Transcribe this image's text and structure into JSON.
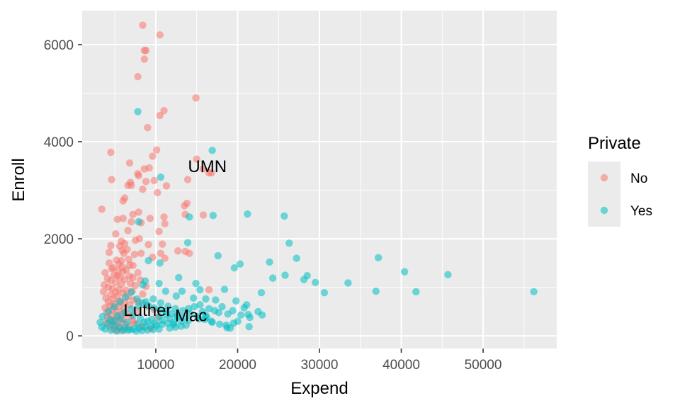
{
  "chart_data": {
    "type": "scatter",
    "xlabel": "Expend",
    "ylabel": "Enroll",
    "xlim": [
      1000,
      59000
    ],
    "ylim": [
      -260,
      6700
    ],
    "x_ticks": [
      10000,
      20000,
      30000,
      40000,
      50000
    ],
    "y_ticks": [
      0,
      2000,
      4000,
      6000
    ],
    "x_tick_labels": [
      "10000",
      "20000",
      "30000",
      "40000",
      "50000"
    ],
    "y_tick_labels": [
      "0",
      "2000",
      "4000",
      "6000"
    ],
    "grid": true,
    "legend": {
      "title": "Private",
      "placement": "right",
      "entries": [
        "No",
        "Yes"
      ]
    },
    "series": [
      {
        "name": "No",
        "color": "#F8766D",
        "points": [
          [
            8400,
            6400
          ],
          [
            10500,
            6200
          ],
          [
            8600,
            5880
          ],
          [
            8800,
            5880
          ],
          [
            8600,
            5700
          ],
          [
            7800,
            5340
          ],
          [
            14900,
            4900
          ],
          [
            11000,
            4640
          ],
          [
            10500,
            4540
          ],
          [
            9000,
            4290
          ],
          [
            4500,
            3780
          ],
          [
            10100,
            3830
          ],
          [
            15000,
            3640
          ],
          [
            9600,
            3700
          ],
          [
            6800,
            3560
          ],
          [
            8600,
            3440
          ],
          [
            9200,
            3460
          ],
          [
            16500,
            3360
          ],
          [
            15800,
            3440
          ],
          [
            16800,
            3360
          ],
          [
            7800,
            3340
          ],
          [
            7900,
            3300
          ],
          [
            4600,
            3220
          ],
          [
            6900,
            3160
          ],
          [
            13900,
            3220
          ],
          [
            9800,
            3200
          ],
          [
            8800,
            3180
          ],
          [
            6600,
            3100
          ],
          [
            7000,
            3100
          ],
          [
            11300,
            3090
          ],
          [
            8400,
            3020
          ],
          [
            10200,
            2950
          ],
          [
            6200,
            2840
          ],
          [
            6000,
            2780
          ],
          [
            13800,
            2730
          ],
          [
            13500,
            2680
          ],
          [
            3400,
            2610
          ],
          [
            7900,
            2550
          ],
          [
            13600,
            2500
          ],
          [
            15800,
            2490
          ],
          [
            7200,
            2500
          ],
          [
            11000,
            2450
          ],
          [
            9300,
            2420
          ],
          [
            5300,
            2400
          ],
          [
            6000,
            2420
          ],
          [
            7000,
            2350
          ],
          [
            8200,
            2330
          ],
          [
            11100,
            2310
          ],
          [
            6600,
            2170
          ],
          [
            10400,
            2150
          ],
          [
            5100,
            2100
          ],
          [
            8000,
            2000
          ],
          [
            7500,
            1970
          ],
          [
            10800,
            1890
          ],
          [
            5800,
            1950
          ],
          [
            6200,
            1900
          ],
          [
            5600,
            1850
          ],
          [
            9100,
            1880
          ],
          [
            4500,
            1860
          ],
          [
            5900,
            1760
          ],
          [
            6500,
            1780
          ],
          [
            4300,
            1720
          ],
          [
            12700,
            1750
          ],
          [
            13600,
            1740
          ],
          [
            14100,
            1700
          ],
          [
            6100,
            1700
          ],
          [
            7400,
            1680
          ],
          [
            8200,
            1700
          ],
          [
            10600,
            1700
          ],
          [
            9600,
            1620
          ],
          [
            11100,
            1600
          ],
          [
            6700,
            1580
          ],
          [
            5200,
            1560
          ],
          [
            5800,
            1550
          ],
          [
            4300,
            1500
          ],
          [
            5500,
            1480
          ],
          [
            6800,
            1460
          ],
          [
            7200,
            1450
          ],
          [
            5900,
            1420
          ],
          [
            4800,
            1400
          ],
          [
            4600,
            1380
          ],
          [
            6400,
            1360
          ],
          [
            5400,
            1340
          ],
          [
            3800,
            1300
          ],
          [
            6000,
            1320
          ],
          [
            7800,
            1300
          ],
          [
            4900,
            1250
          ],
          [
            5300,
            1240
          ],
          [
            6800,
            1230
          ],
          [
            7200,
            1200
          ],
          [
            4100,
            1180
          ],
          [
            5600,
            1200
          ],
          [
            6200,
            1160
          ],
          [
            8100,
            1150
          ],
          [
            4500,
            1140
          ],
          [
            5100,
            1100
          ],
          [
            3700,
            1050
          ],
          [
            6900,
            1080
          ],
          [
            5800,
            1060
          ],
          [
            7500,
            1040
          ],
          [
            8800,
            1020
          ],
          [
            16500,
            950
          ],
          [
            4200,
            1000
          ],
          [
            4700,
            980
          ],
          [
            5500,
            960
          ],
          [
            6400,
            940
          ],
          [
            3600,
            910
          ],
          [
            7100,
            920
          ],
          [
            5100,
            900
          ],
          [
            6000,
            880
          ],
          [
            8400,
            860
          ],
          [
            4500,
            850
          ],
          [
            5300,
            820
          ],
          [
            6600,
            800
          ],
          [
            3900,
            780
          ],
          [
            4800,
            760
          ],
          [
            7300,
            740
          ],
          [
            5700,
            720
          ],
          [
            4200,
            700
          ],
          [
            6200,
            690
          ],
          [
            5000,
            660
          ],
          [
            6800,
            640
          ],
          [
            4400,
            620
          ],
          [
            5500,
            600
          ],
          [
            3800,
            580
          ],
          [
            6100,
            560
          ],
          [
            4700,
            540
          ],
          [
            7600,
            520
          ],
          [
            5200,
            500
          ],
          [
            4000,
            480
          ],
          [
            6400,
            460
          ],
          [
            5800,
            440
          ],
          [
            4500,
            420
          ],
          [
            6900,
            400
          ],
          [
            5300,
            390
          ],
          [
            4100,
            370
          ],
          [
            6000,
            350
          ],
          [
            5000,
            330
          ],
          [
            7200,
            310
          ],
          [
            4600,
            300
          ],
          [
            5700,
            280
          ],
          [
            3900,
            260
          ],
          [
            6300,
            240
          ],
          [
            5100,
            220
          ],
          [
            4400,
            200
          ],
          [
            6700,
            180
          ],
          [
            5500,
            160
          ],
          [
            4800,
            140
          ],
          [
            6100,
            120
          ],
          [
            5300,
            110
          ],
          [
            7400,
            260
          ],
          [
            8900,
            620
          ],
          [
            9800,
            540
          ],
          [
            10200,
            380
          ],
          [
            8300,
            200
          ],
          [
            9400,
            150
          ],
          [
            7900,
            700
          ]
        ]
      },
      {
        "name": "Yes",
        "color": "#00BFC4",
        "points": [
          [
            7800,
            4620
          ],
          [
            16900,
            3820
          ],
          [
            10600,
            3270
          ],
          [
            21200,
            2510
          ],
          [
            25700,
            2470
          ],
          [
            17000,
            2480
          ],
          [
            14100,
            2450
          ],
          [
            7900,
            2350
          ],
          [
            26300,
            1910
          ],
          [
            13900,
            1920
          ],
          [
            27200,
            1600
          ],
          [
            37200,
            1610
          ],
          [
            17600,
            1650
          ],
          [
            20300,
            1480
          ],
          [
            19600,
            1400
          ],
          [
            23900,
            1520
          ],
          [
            40400,
            1320
          ],
          [
            45700,
            1260
          ],
          [
            25800,
            1250
          ],
          [
            28500,
            1240
          ],
          [
            24300,
            1190
          ],
          [
            28100,
            1160
          ],
          [
            29500,
            1100
          ],
          [
            33500,
            1090
          ],
          [
            18400,
            960
          ],
          [
            22900,
            890
          ],
          [
            30600,
            890
          ],
          [
            36900,
            920
          ],
          [
            41800,
            910
          ],
          [
            56200,
            910
          ],
          [
            12800,
            1200
          ],
          [
            14900,
            1080
          ],
          [
            13200,
            920
          ],
          [
            15400,
            950
          ],
          [
            10400,
            1080
          ],
          [
            8700,
            1130
          ],
          [
            9100,
            1550
          ],
          [
            10500,
            1500
          ],
          [
            8400,
            1050
          ],
          [
            11200,
            920
          ],
          [
            12500,
            820
          ],
          [
            14600,
            780
          ],
          [
            16100,
            760
          ],
          [
            17300,
            740
          ],
          [
            19800,
            720
          ],
          [
            21100,
            640
          ],
          [
            22500,
            500
          ],
          [
            21300,
            440
          ],
          [
            23000,
            430
          ],
          [
            20400,
            430
          ],
          [
            18800,
            450
          ],
          [
            17700,
            480
          ],
          [
            16500,
            560
          ],
          [
            18100,
            600
          ],
          [
            19400,
            520
          ],
          [
            20800,
            580
          ],
          [
            17200,
            520
          ],
          [
            15700,
            500
          ],
          [
            21500,
            380
          ],
          [
            20000,
            300
          ],
          [
            18700,
            170
          ],
          [
            19100,
            160
          ],
          [
            21400,
            190
          ],
          [
            16200,
            380
          ],
          [
            15300,
            350
          ],
          [
            14000,
            320
          ],
          [
            13100,
            300
          ],
          [
            12200,
            280
          ],
          [
            11500,
            260
          ],
          [
            10800,
            240
          ],
          [
            10100,
            220
          ],
          [
            9400,
            200
          ],
          [
            8700,
            180
          ],
          [
            8000,
            160
          ],
          [
            7300,
            140
          ],
          [
            6600,
            120
          ],
          [
            5900,
            110
          ],
          [
            5200,
            100
          ],
          [
            4500,
            120
          ],
          [
            3800,
            140
          ],
          [
            3200,
            280
          ],
          [
            3500,
            400
          ],
          [
            4200,
            500
          ],
          [
            4900,
            600
          ],
          [
            5600,
            700
          ],
          [
            6300,
            800
          ],
          [
            7000,
            900
          ],
          [
            7700,
            760
          ],
          [
            8400,
            680
          ],
          [
            9100,
            620
          ],
          [
            9800,
            580
          ],
          [
            10500,
            540
          ],
          [
            11200,
            500
          ],
          [
            11900,
            460
          ],
          [
            12600,
            420
          ],
          [
            13300,
            380
          ],
          [
            14000,
            560
          ],
          [
            14700,
            600
          ],
          [
            15400,
            640
          ],
          [
            16100,
            420
          ],
          [
            16800,
            300
          ],
          [
            13700,
            220
          ],
          [
            12400,
            180
          ],
          [
            11700,
            160
          ],
          [
            10400,
            140
          ],
          [
            9700,
            130
          ],
          [
            9000,
            120
          ],
          [
            8300,
            110
          ],
          [
            7600,
            100
          ],
          [
            6900,
            130
          ],
          [
            6200,
            160
          ],
          [
            5500,
            190
          ],
          [
            4800,
            220
          ],
          [
            4100,
            250
          ],
          [
            3400,
            180
          ],
          [
            4400,
            340
          ],
          [
            5300,
            420
          ],
          [
            6100,
            480
          ],
          [
            7000,
            550
          ],
          [
            7900,
            620
          ],
          [
            8800,
            700
          ],
          [
            9700,
            760
          ],
          [
            10600,
            680
          ],
          [
            11500,
            610
          ],
          [
            12400,
            560
          ],
          [
            13300,
            520
          ],
          [
            14200,
            460
          ],
          [
            15100,
            400
          ],
          [
            16000,
            340
          ],
          [
            16900,
            280
          ],
          [
            17800,
            240
          ],
          [
            18600,
            220
          ],
          [
            19500,
            260
          ],
          [
            7200,
            420
          ],
          [
            8100,
            360
          ],
          [
            9000,
            300
          ],
          [
            9900,
            260
          ],
          [
            10800,
            320
          ],
          [
            11700,
            360
          ],
          [
            12600,
            400
          ],
          [
            6500,
            280
          ],
          [
            5700,
            340
          ],
          [
            4900,
            300
          ],
          [
            7800,
            240
          ],
          [
            8600,
            280
          ],
          [
            9500,
            340
          ],
          [
            10400,
            400
          ],
          [
            11300,
            440
          ],
          [
            12200,
            240
          ],
          [
            13100,
            200
          ]
        ]
      }
    ],
    "annotations": [
      {
        "text": "UMN",
        "x": 16300,
        "y": 3490
      },
      {
        "text": "Luther",
        "x": 9000,
        "y": 530
      },
      {
        "text": "Mac",
        "x": 14300,
        "y": 420
      }
    ]
  }
}
